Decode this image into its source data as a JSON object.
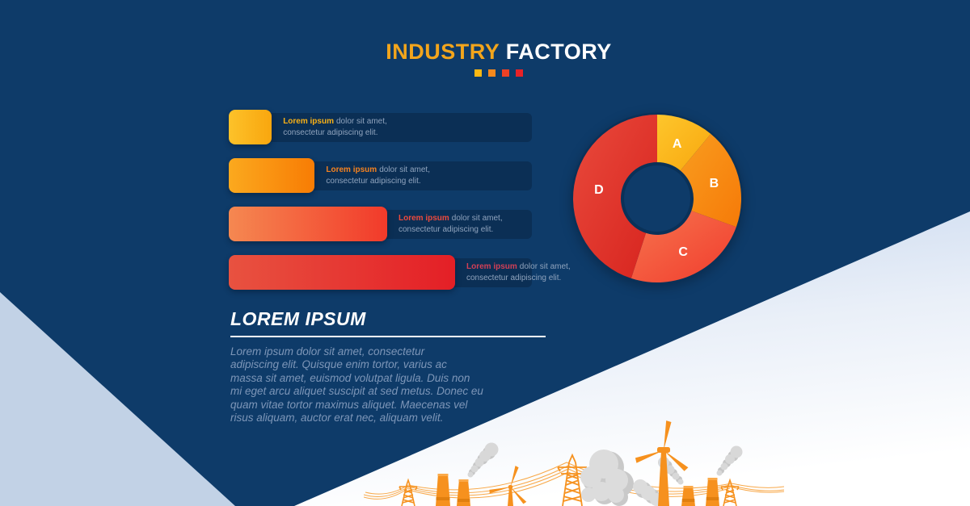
{
  "header": {
    "title_accent": "INDUSTRY",
    "title_rest": " FACTORY",
    "squares": [
      "#fcb813",
      "#f6891d",
      "#ee4125",
      "#e92227"
    ]
  },
  "bars": {
    "items": [
      {
        "label": "Lorem ipsum",
        "line1": "dolor sit amet,",
        "line2": "consectetur adipiscing elit.",
        "label_color": "#f9b117",
        "bar_from": "#fdc22a",
        "bar_to": "#f9a60e"
      },
      {
        "label": "Lorem ipsum",
        "line1": "dolor sit amet,",
        "line2": "consectetur adipiscing elit.",
        "label_color": "#f58220",
        "bar_from": "#fba91e",
        "bar_to": "#f87c04"
      },
      {
        "label": "Lorem ipsum",
        "line1": "dolor sit amet,",
        "line2": "consectetur adipiscing elit.",
        "label_color": "#ed4a3d",
        "bar_from": "#f58851",
        "bar_to": "#f23a2a"
      },
      {
        "label": "Lorem ipsum",
        "line1": "dolor sit amet,",
        "line2": "consectetur adipiscing elit.",
        "label_color": "#d23f56",
        "bar_from": "#e85240",
        "bar_to": "#e41f26"
      }
    ]
  },
  "donut_gradients": [
    {
      "from": "#fdc62c",
      "to": "#f9a70e"
    },
    {
      "from": "#f99d1f",
      "to": "#f67a08"
    },
    {
      "from": "#f6744e",
      "to": "#f13c2d"
    },
    {
      "from": "#e94a3c",
      "to": "#d7231e"
    }
  ],
  "lorem": {
    "heading": "LOREM IPSUM",
    "body": "Lorem ipsum dolor sit amet, consectetur\nadipiscing elit. Quisque enim tortor, varius ac\nmassa sit amet, euismod volutpat ligula. Duis non\nmi eget arcu aliquet suscipit at sed metus. Donec eu\nquam vitae tortor maximus aliquet. Maecenas vel\nrisus aliquam, auctor erat nec, aliquam velit."
  },
  "colors": {
    "background_navy": "#0e3b69",
    "panel_navy": "#0b2f55",
    "accent_orange": "#f2a51c",
    "light_triangle": "#c2d2e6",
    "body_text": "#7d96b8",
    "caption_gray": "#8fa3bd"
  },
  "chart_data": [
    {
      "type": "pie",
      "subtype": "donut",
      "labels": [
        "A",
        "B",
        "C",
        "D"
      ],
      "values_pct": [
        11,
        19.5,
        24.5,
        45
      ],
      "colors": [
        "#fbb216",
        "#f8861b",
        "#f25741",
        "#e03a2f"
      ],
      "title": "",
      "legend_position": "labels-inside-slices",
      "start_angle_deg": 0,
      "direction": "clockwise"
    },
    {
      "type": "bar",
      "orientation": "horizontal",
      "categories": [
        "Lorem ipsum 1",
        "Lorem ipsum 2",
        "Lorem ipsum 3",
        "Lorem ipsum 4"
      ],
      "values_relative_pct": [
        19,
        38,
        70,
        100
      ],
      "colors": [
        "#f9a60e",
        "#f87c04",
        "#f23a2a",
        "#e41f26"
      ],
      "title": "",
      "xlabel": "",
      "ylabel": "",
      "note": "no numeric axis shown; bar lengths are relative"
    }
  ]
}
